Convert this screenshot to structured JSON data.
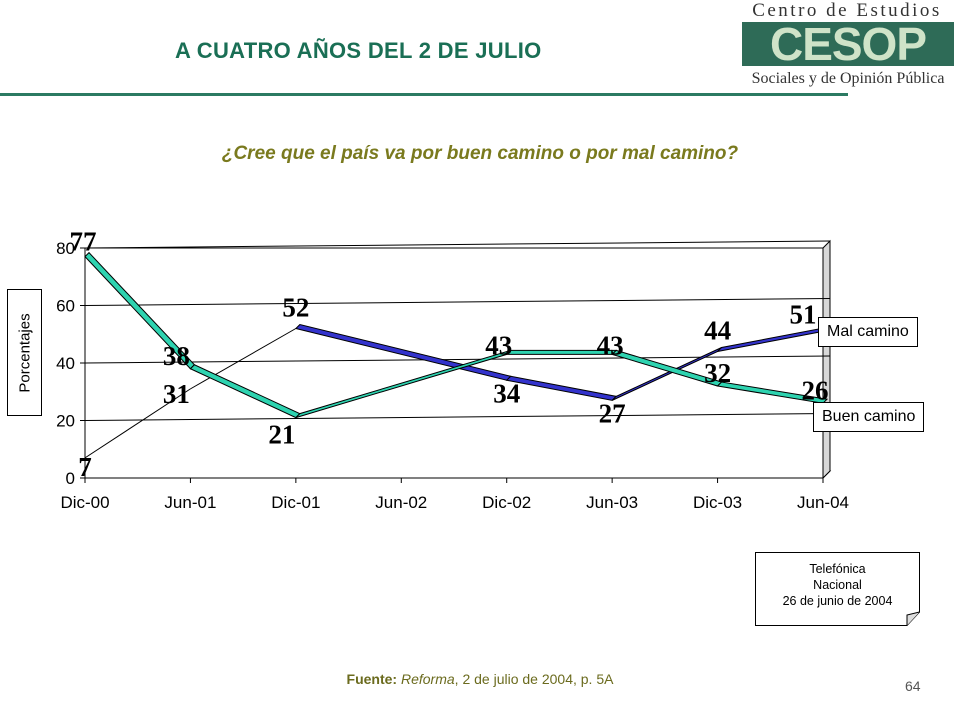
{
  "header": {
    "title": "A CUATRO AÑOS DEL 2 DE JULIO",
    "logo": {
      "top_text": "Centro de Estudios",
      "mark": "CESOP",
      "bottom_text": "Sociales y de Opinión Pública"
    }
  },
  "question": "¿Cree que el país va por buen camino o por mal camino?",
  "note": {
    "line1": "Telefónica",
    "line2": "Nacional",
    "line3": "26 de junio de 2004"
  },
  "source": {
    "label": "Fuente:",
    "publication": "Reforma",
    "rest": ", 2 de julio de 2004, p. 5A"
  },
  "page_number": "64",
  "chart_data": {
    "type": "line",
    "categories": [
      "Dic-00",
      "Jun-01",
      "Dic-01",
      "Jun-02",
      "Dic-02",
      "Jun-03",
      "Dic-03",
      "Jun-04"
    ],
    "ylabel": "Porcentajes",
    "xlabel": "",
    "ylim": [
      0,
      80
    ],
    "yticks": [
      0,
      20,
      40,
      60,
      80
    ],
    "grid": true,
    "legend_placement": "right",
    "series": [
      {
        "name": "Mal camino",
        "color": "#3333cc",
        "points": [
          {
            "x": "Dic-00",
            "y": 7
          },
          {
            "x": "Jun-01",
            "y": 31
          },
          {
            "x": "Dic-01",
            "y": 52
          },
          {
            "x": "Dic-02",
            "y": 34
          },
          {
            "x": "Jun-03",
            "y": 27
          },
          {
            "x": "Dic-03",
            "y": 44
          },
          {
            "x": "Jun-04",
            "y": 51
          }
        ]
      },
      {
        "name": "Buen camino",
        "color": "#2ed3b0",
        "points": [
          {
            "x": "Dic-00",
            "y": 77
          },
          {
            "x": "Jun-01",
            "y": 38
          },
          {
            "x": "Dic-01",
            "y": 21
          },
          {
            "x": "Dic-02",
            "y": 43
          },
          {
            "x": "Jun-03",
            "y": 43
          },
          {
            "x": "Dic-03",
            "y": 32
          },
          {
            "x": "Jun-04",
            "y": 26
          }
        ]
      }
    ]
  }
}
